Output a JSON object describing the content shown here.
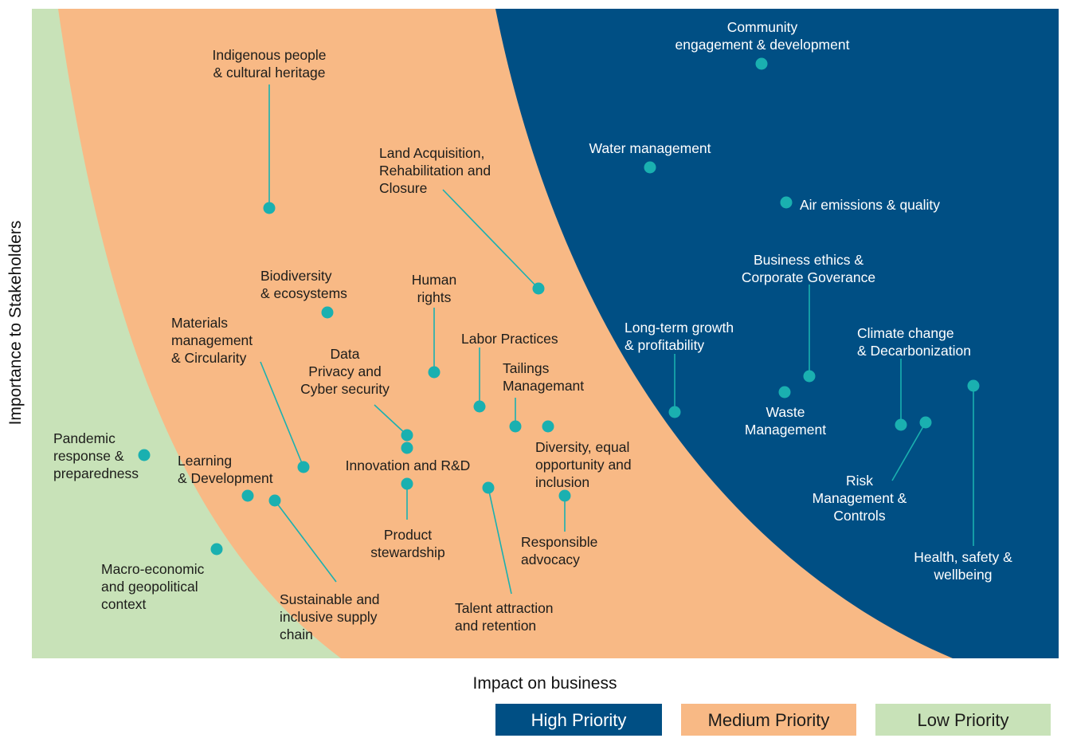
{
  "chart_data": {
    "type": "scatter",
    "title": "",
    "xlabel": "Impact on business",
    "ylabel": "Importance to Stakeholders",
    "xlim": [
      0,
      100
    ],
    "ylim": [
      0,
      100
    ],
    "grid": false,
    "legend_position": "bottom-right",
    "colors": {
      "high": "#004f84",
      "medium": "#f8b985",
      "low": "#c8e2b8",
      "marker": "#1ab0b0",
      "leader": "#1ab0b0"
    },
    "regions": [
      {
        "key": "high",
        "name": "High Priority"
      },
      {
        "key": "medium",
        "name": "Medium Priority"
      },
      {
        "key": "low",
        "name": "Low Priority"
      }
    ],
    "points": [
      {
        "label": "Community engagement & development",
        "x": 70,
        "y": 91.4,
        "priority": "high"
      },
      {
        "label": "Water management",
        "x": 59.3,
        "y": 75.8,
        "priority": "high"
      },
      {
        "label": "Air emissions & quality",
        "x": 72.3,
        "y": 70.3,
        "priority": "high"
      },
      {
        "label": "Indigenous people & cultural heritage",
        "x": 23.1,
        "y": 69.8,
        "priority": "medium"
      },
      {
        "label": "Land Acquisition, Rehabilitation and Closure",
        "x": 49.4,
        "y": 56.8,
        "priority": "medium"
      },
      {
        "label": "Biodiversity & ecosystems",
        "x": 28.8,
        "y": 53.5,
        "priority": "medium"
      },
      {
        "label": "Human rights",
        "x": 39.1,
        "y": 44.3,
        "priority": "medium"
      },
      {
        "label": "Business ethics & Corporate Goverance",
        "x": 74.6,
        "y": 43.5,
        "priority": "high"
      },
      {
        "label": "Health, safety & wellbeing",
        "x": 91.5,
        "y": 42.0,
        "priority": "high"
      },
      {
        "label": "Waste Management",
        "x": 72.3,
        "y": 41.2,
        "priority": "high"
      },
      {
        "label": "Labor Practices",
        "x": 43.4,
        "y": 38.7,
        "priority": "medium"
      },
      {
        "label": "Long-term growth & profitability",
        "x": 61.5,
        "y": 37.9,
        "priority": "high"
      },
      {
        "label": "Risk Management & Controls",
        "x": 85.4,
        "y": 36.1,
        "priority": "high"
      },
      {
        "label": "Climate change & Decarbonization",
        "x": 83.1,
        "y": 35.7,
        "priority": "high"
      },
      {
        "label": "Tailings Managemant",
        "x": 47.1,
        "y": 35.6,
        "priority": "medium"
      },
      {
        "label": "Diversity, equal opportunity and inclusion",
        "x": 50.3,
        "y": 35.6,
        "priority": "medium"
      },
      {
        "label": "Data Privacy and Cyber security",
        "x": 36.8,
        "y": 34.1,
        "priority": "medium"
      },
      {
        "label": "Innovation and R&D",
        "x": 36.8,
        "y": 32.4,
        "priority": "medium"
      },
      {
        "label": "Pandemic response & preparedness",
        "x": 11.3,
        "y": 31.0,
        "priority": "low"
      },
      {
        "label": "Materials management & Circularity",
        "x": 26.8,
        "y": 29.4,
        "priority": "medium"
      },
      {
        "label": "Product stewardship",
        "x": 36.8,
        "y": 26.9,
        "priority": "medium"
      },
      {
        "label": "Talent attraction and retention",
        "x": 44.4,
        "y": 26.2,
        "priority": "medium"
      },
      {
        "label": "Learning & Development",
        "x": 21.7,
        "y": 25.0,
        "priority": "medium"
      },
      {
        "label": "Responsible advocacy",
        "x": 51.9,
        "y": 25.0,
        "priority": "medium"
      },
      {
        "label": "Sustainable and inclusive supply chain",
        "x": 24.2,
        "y": 24.2,
        "priority": "medium"
      },
      {
        "label": "Macro-economic and geopolitical context",
        "x": 18.4,
        "y": 16.8,
        "priority": "low"
      }
    ]
  },
  "labels": {
    "community": [
      "Community",
      "engagement & development"
    ],
    "water": [
      "Water management"
    ],
    "air": [
      "Air emissions & quality"
    ],
    "indigenous": [
      "Indigenous people",
      "& cultural heritage"
    ],
    "land": [
      "Land Acquisition,",
      "Rehabilitation and",
      "Closure"
    ],
    "biodiversity": [
      "Biodiversity",
      "& ecosystems"
    ],
    "human_rights": [
      "Human",
      "rights"
    ],
    "business_ethics": [
      "Business ethics &",
      "Corporate Goverance"
    ],
    "health": [
      "Health, safety &",
      "wellbeing"
    ],
    "waste": [
      "Waste",
      "Management"
    ],
    "labor": [
      "Labor Practices"
    ],
    "longterm": [
      "Long-term growth",
      "& profitability"
    ],
    "risk": [
      "Risk",
      "Management &",
      "Controls"
    ],
    "climate": [
      "Climate change",
      "& Decarbonization"
    ],
    "tailings": [
      "Tailings",
      "Managemant"
    ],
    "diversity": [
      "Diversity, equal",
      "opportunity and",
      "inclusion"
    ],
    "data_privacy": [
      "Data",
      "Privacy and",
      "Cyber security"
    ],
    "innovation": [
      "Innovation and R&D"
    ],
    "pandemic": [
      "Pandemic",
      "response &",
      "preparedness"
    ],
    "materials": [
      "Materials",
      "management",
      "& Circularity"
    ],
    "product": [
      "Product",
      "stewardship"
    ],
    "talent": [
      "Talent attraction",
      "and retention"
    ],
    "learning": [
      "Learning",
      "& Development"
    ],
    "advocacy": [
      "Responsible",
      "advocacy"
    ],
    "supply": [
      "Sustainable and",
      "inclusive supply",
      "chain"
    ],
    "macro": [
      "Macro-economic",
      "and geopolitical",
      "context"
    ]
  }
}
